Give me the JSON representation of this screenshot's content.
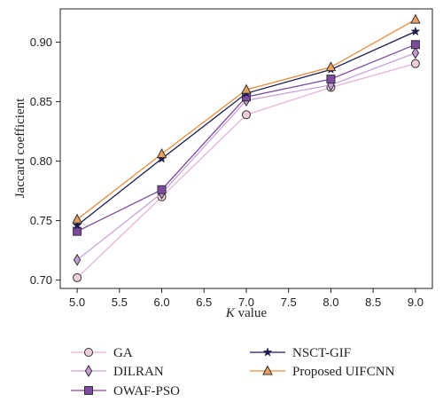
{
  "chart_data": {
    "type": "line",
    "x": [
      5.0,
      6.0,
      7.0,
      8.0,
      9.0
    ],
    "x_ticks": [
      "5.0",
      "5.5",
      "6.0",
      "6.5",
      "7.0",
      "7.5",
      "8.0",
      "8.5",
      "9.0"
    ],
    "y_ticks": [
      "0.70",
      "0.75",
      "0.80",
      "0.85",
      "0.90"
    ],
    "xlim": [
      4.8,
      9.2
    ],
    "ylim": [
      0.693,
      0.928
    ],
    "xlabel_italic": "K",
    "xlabel_rest": " value",
    "ylabel": "Jaccard coefficient",
    "grid": false,
    "legend_position": "bottom",
    "series": [
      {
        "name": "GA",
        "color": "#e6b3da",
        "marker": "circle",
        "marker_fill": "#f1cfd9",
        "values": [
          0.702,
          0.77,
          0.839,
          0.862,
          0.882
        ]
      },
      {
        "name": "DILRAN",
        "color": "#c9a3d9",
        "marker": "diamond",
        "marker_fill": "#c49bd4",
        "values": [
          0.717,
          0.773,
          0.851,
          0.864,
          0.891
        ]
      },
      {
        "name": "OWAF-PSO",
        "color": "#7d4aa0",
        "marker": "square",
        "marker_fill": "#7d4aa0",
        "values": [
          0.741,
          0.776,
          0.854,
          0.869,
          0.898
        ]
      },
      {
        "name": "NSCT-GIF",
        "color": "#1b1b4d",
        "marker": "star",
        "marker_fill": "#1b1b4d",
        "values": [
          0.746,
          0.802,
          0.857,
          0.877,
          0.909
        ]
      },
      {
        "name": "Proposed UIFCNN",
        "color": "#e88a3a",
        "marker": "triangle",
        "marker_fill": "#e8a060",
        "values": [
          0.751,
          0.806,
          0.86,
          0.879,
          0.919
        ]
      }
    ]
  }
}
